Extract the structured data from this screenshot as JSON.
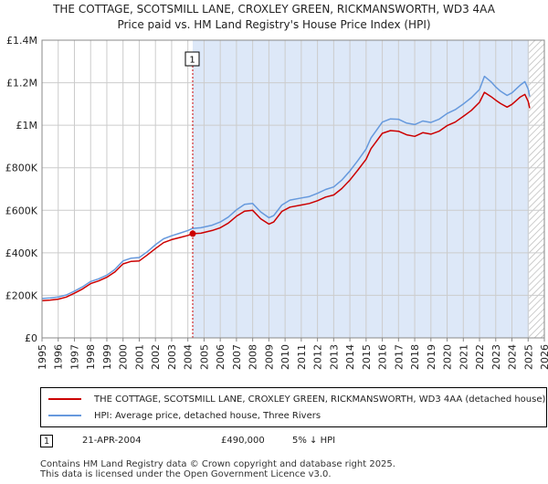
{
  "title_line1": "THE COTTAGE, SCOTSMILL LANE, CROXLEY GREEN, RICKMANSWORTH, WD3 4AA",
  "title_line2": "Price paid vs. HM Land Registry's House Price Index (HPI)",
  "colors": {
    "red": "#cc0000",
    "blue": "#6699dd",
    "shade": "#dde8f8",
    "grid": "#cccccc"
  },
  "chart_data": {
    "type": "line",
    "title": "Price paid vs. HM Land Registry's House Price Index (HPI)",
    "xlim": [
      1995,
      2026
    ],
    "ylim": [
      0,
      1400000
    ],
    "x_ticks": [
      "1995",
      "1996",
      "1997",
      "1998",
      "1999",
      "2000",
      "2001",
      "2002",
      "2003",
      "2004",
      "2005",
      "2006",
      "2007",
      "2008",
      "2009",
      "2010",
      "2011",
      "2012",
      "2013",
      "2014",
      "2015",
      "2016",
      "2017",
      "2018",
      "2019",
      "2020",
      "2021",
      "2022",
      "2023",
      "2024",
      "2025",
      "2026"
    ],
    "y_ticks": [
      {
        "value": 0,
        "label": "£0"
      },
      {
        "value": 200000,
        "label": "£200K"
      },
      {
        "value": 400000,
        "label": "£400K"
      },
      {
        "value": 600000,
        "label": "£600K"
      },
      {
        "value": 800000,
        "label": "£800K"
      },
      {
        "value": 1000000,
        "label": "£1M"
      },
      {
        "value": 1200000,
        "label": "£1.2M"
      },
      {
        "value": 1400000,
        "label": "£1.4M"
      }
    ],
    "shaded_ranges": [
      [
        2004.3,
        2025.05
      ]
    ],
    "hatched_range": [
      2025.05,
      2026
    ],
    "series": [
      {
        "name": "THE COTTAGE, SCOTSMILL LANE, CROXLEY GREEN, RICKMANSWORTH, WD3 4AA (detached house)",
        "color": "#cc0000",
        "x": [
          1995,
          1995.5,
          1996,
          1996.5,
          1997,
          1997.5,
          1998,
          1998.5,
          1999,
          1999.5,
          2000,
          2000.5,
          2001,
          2001.5,
          2002,
          2002.5,
          2003,
          2003.5,
          2004,
          2004.3,
          2004.8,
          2005.5,
          2006,
          2006.5,
          2007,
          2007.5,
          2008,
          2008.5,
          2009,
          2009.3,
          2009.8,
          2010.3,
          2011,
          2011.5,
          2012,
          2012.5,
          2013,
          2013.5,
          2014,
          2014.5,
          2015,
          2015.3,
          2016,
          2016.5,
          2017,
          2017.5,
          2018,
          2018.5,
          2019,
          2019.5,
          2020,
          2020.5,
          2021,
          2021.5,
          2022,
          2022.3,
          2022.7,
          2023,
          2023.3,
          2023.7,
          2024,
          2024.5,
          2024.8,
          2025,
          2025.1
        ],
        "y": [
          175000,
          178000,
          182000,
          192000,
          210000,
          230000,
          255000,
          268000,
          285000,
          310000,
          348000,
          360000,
          362000,
          390000,
          420000,
          448000,
          462000,
          472000,
          482000,
          490000,
          492000,
          505000,
          518000,
          540000,
          572000,
          596000,
          600000,
          560000,
          535000,
          545000,
          595000,
          615000,
          625000,
          632000,
          645000,
          662000,
          672000,
          702000,
          742000,
          790000,
          840000,
          890000,
          962000,
          975000,
          972000,
          955000,
          948000,
          965000,
          958000,
          972000,
          998000,
          1015000,
          1042000,
          1070000,
          1108000,
          1155000,
          1135000,
          1118000,
          1102000,
          1085000,
          1098000,
          1132000,
          1145000,
          1112000,
          1080000
        ]
      },
      {
        "name": "HPI: Average price, detached house, Three Rivers",
        "color": "#6699dd",
        "x": [
          1995,
          1995.5,
          1996,
          1996.5,
          1997,
          1997.5,
          1998,
          1998.5,
          1999,
          1999.5,
          2000,
          2000.5,
          2001,
          2001.5,
          2002,
          2002.5,
          2003,
          2003.5,
          2004,
          2004.3,
          2004.8,
          2005.5,
          2006,
          2006.5,
          2007,
          2007.5,
          2008,
          2008.5,
          2009,
          2009.3,
          2009.8,
          2010.3,
          2011,
          2011.5,
          2012,
          2012.5,
          2013,
          2013.5,
          2014,
          2014.5,
          2015,
          2015.3,
          2016,
          2016.5,
          2017,
          2017.5,
          2018,
          2018.5,
          2019,
          2019.5,
          2020,
          2020.5,
          2021,
          2021.5,
          2022,
          2022.3,
          2022.7,
          2023,
          2023.3,
          2023.7,
          2024,
          2024.5,
          2024.8,
          2025,
          2025.1
        ],
        "y": [
          185000,
          188000,
          192000,
          202000,
          220000,
          240000,
          265000,
          278000,
          295000,
          322000,
          362000,
          375000,
          378000,
          405000,
          438000,
          466000,
          480000,
          492000,
          505000,
          515000,
          518000,
          530000,
          545000,
          568000,
          602000,
          628000,
          632000,
          592000,
          565000,
          575000,
          625000,
          648000,
          658000,
          665000,
          680000,
          698000,
          710000,
          742000,
          785000,
          835000,
          888000,
          940000,
          1015000,
          1030000,
          1028000,
          1010000,
          1003000,
          1020000,
          1013000,
          1028000,
          1055000,
          1073000,
          1100000,
          1130000,
          1168000,
          1230000,
          1205000,
          1180000,
          1160000,
          1140000,
          1152000,
          1188000,
          1205000,
          1170000,
          1135000
        ]
      }
    ],
    "annotations": [
      {
        "label": "1",
        "x": 2004.3,
        "y": 490000
      }
    ]
  },
  "legend": {
    "red_label": "THE COTTAGE, SCOTSMILL LANE, CROXLEY GREEN, RICKMANSWORTH, WD3 4AA (detached house)",
    "blue_label": "HPI: Average price, detached house, Three Rivers"
  },
  "transaction": {
    "num": "1",
    "date": "21-APR-2004",
    "price": "£490,000",
    "hpi": "5% ↓ HPI"
  },
  "footer": {
    "line1": "Contains HM Land Registry data © Crown copyright and database right 2025.",
    "line2": "This data is licensed under the Open Government Licence v3.0."
  }
}
